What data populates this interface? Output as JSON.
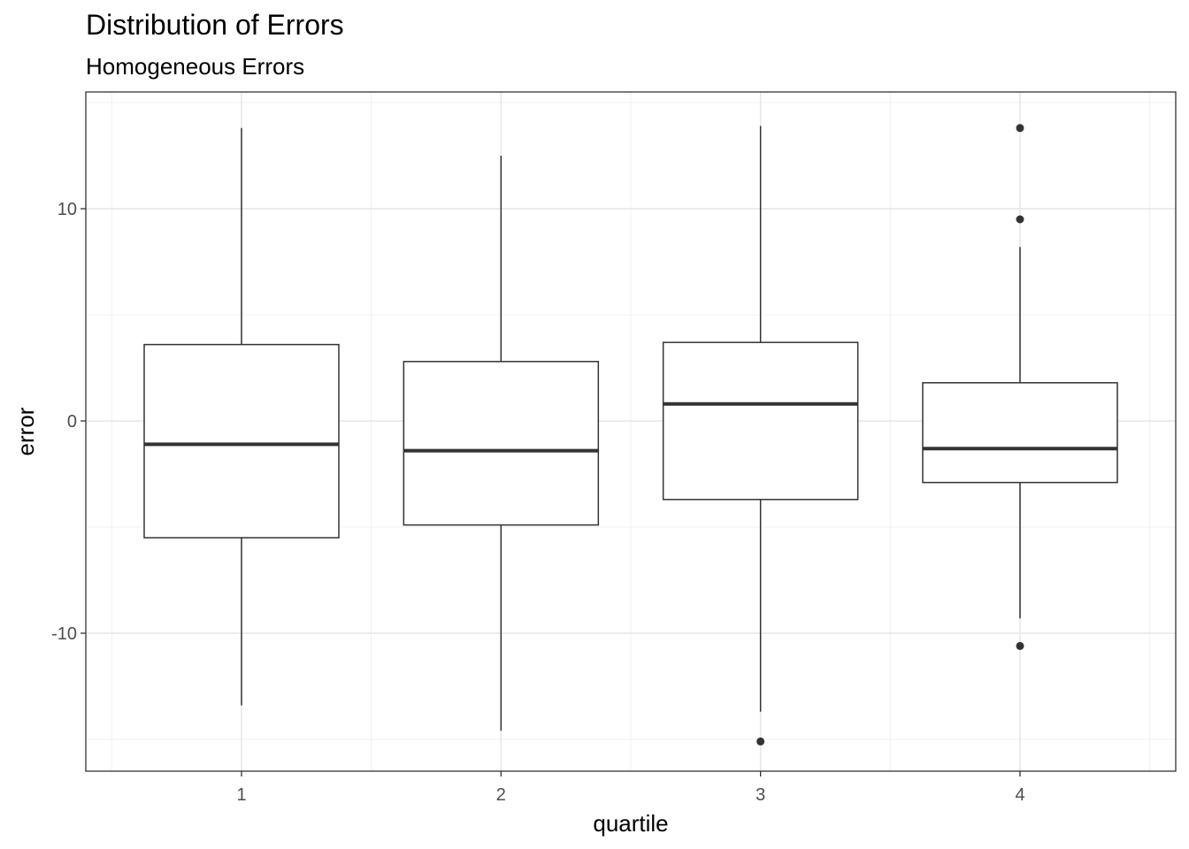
{
  "chart_data": {
    "type": "boxplot",
    "title": "Distribution of Errors",
    "subtitle": "Homogeneous Errors",
    "xlabel": "quartile",
    "ylabel": "error",
    "categories": [
      "1",
      "2",
      "3",
      "4"
    ],
    "y_ticks": [
      -10,
      0,
      10
    ],
    "ylim": [
      -16.5,
      15.5
    ],
    "grid": true,
    "boxes": [
      {
        "category": "1",
        "whisker_low": -13.4,
        "q1": -5.5,
        "median": -1.1,
        "q3": 3.6,
        "whisker_high": 13.8,
        "outliers": []
      },
      {
        "category": "2",
        "whisker_low": -14.6,
        "q1": -4.9,
        "median": -1.4,
        "q3": 2.8,
        "whisker_high": 12.5,
        "outliers": []
      },
      {
        "category": "3",
        "whisker_low": -13.7,
        "q1": -3.7,
        "median": 0.8,
        "q3": 3.7,
        "whisker_high": 13.9,
        "outliers": [
          -15.1
        ]
      },
      {
        "category": "4",
        "whisker_low": -9.3,
        "q1": -2.9,
        "median": -1.3,
        "q3": 1.8,
        "whisker_high": 8.2,
        "outliers": [
          13.8,
          9.5,
          -10.6
        ]
      }
    ]
  }
}
